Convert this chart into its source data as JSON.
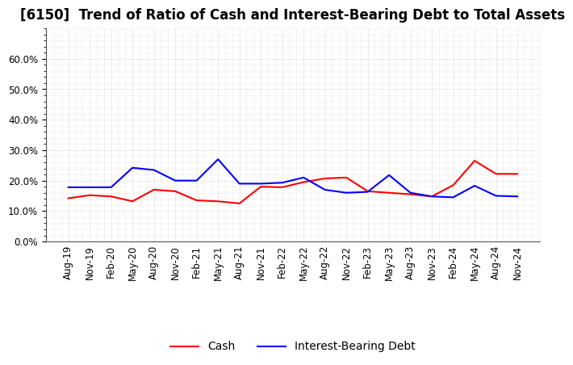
{
  "title": "[6150]  Trend of Ratio of Cash and Interest-Bearing Debt to Total Assets",
  "x_labels": [
    "Aug-19",
    "Nov-19",
    "Feb-20",
    "May-20",
    "Aug-20",
    "Nov-20",
    "Feb-21",
    "May-21",
    "Aug-21",
    "Nov-21",
    "Feb-22",
    "May-22",
    "Aug-22",
    "Nov-22",
    "Feb-23",
    "May-23",
    "Aug-23",
    "Nov-23",
    "Feb-24",
    "May-24",
    "Aug-24",
    "Nov-24"
  ],
  "cash": [
    0.142,
    0.152,
    0.148,
    0.132,
    0.17,
    0.165,
    0.135,
    0.132,
    0.125,
    0.18,
    0.178,
    0.195,
    0.207,
    0.21,
    0.165,
    0.16,
    0.155,
    0.148,
    0.185,
    0.265,
    0.222,
    0.222
  ],
  "interest_bearing_debt": [
    0.178,
    0.178,
    0.178,
    0.242,
    0.235,
    0.2,
    0.2,
    0.27,
    0.19,
    0.19,
    0.193,
    0.21,
    0.17,
    0.16,
    0.163,
    0.218,
    0.16,
    0.148,
    0.145,
    0.183,
    0.15,
    0.148
  ],
  "cash_color": "#ff0000",
  "debt_color": "#0000ff",
  "background_color": "#ffffff",
  "grid_color": "#999999",
  "title_fontsize": 12,
  "legend_fontsize": 10,
  "tick_fontsize": 8.5,
  "ylim": [
    0.0,
    0.7
  ],
  "yticks": [
    0.0,
    0.1,
    0.2,
    0.3,
    0.4,
    0.5,
    0.6
  ]
}
